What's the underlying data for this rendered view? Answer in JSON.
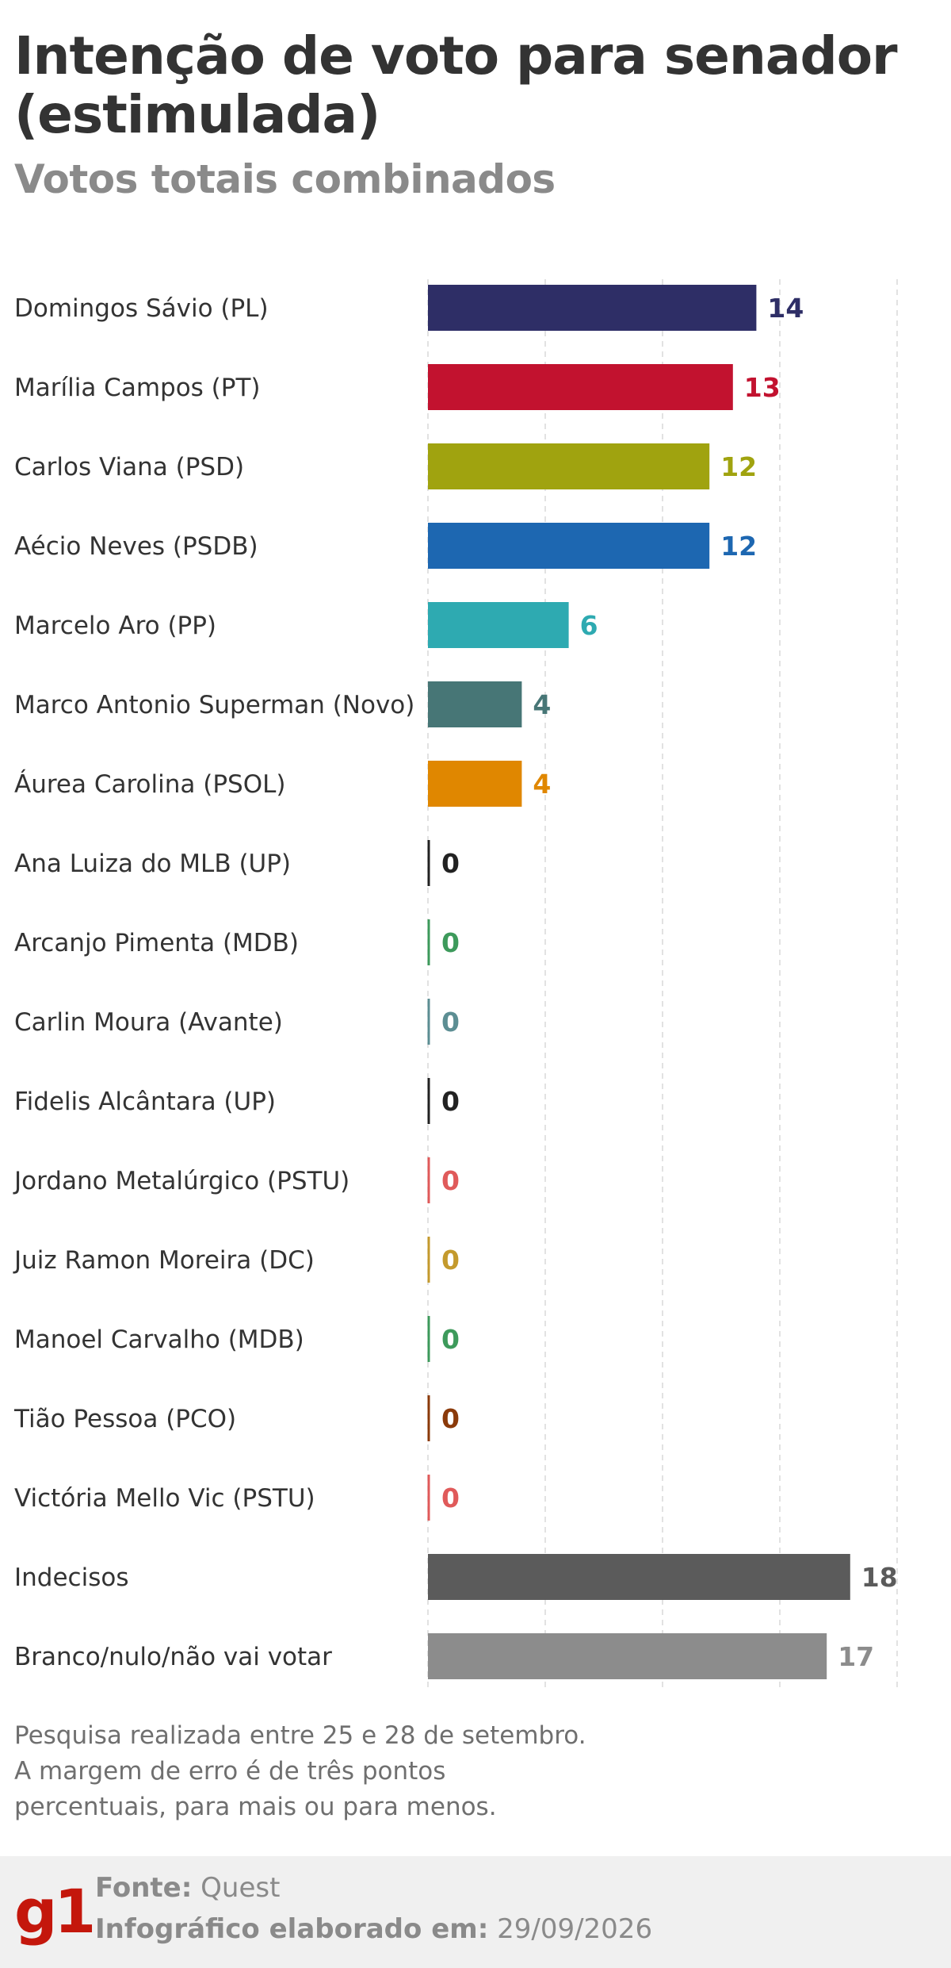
{
  "header": {
    "title": "Intenção de voto para senador (estimulada)",
    "subtitle": "Votos totais combinados"
  },
  "chart_data": {
    "type": "bar",
    "orientation": "horizontal",
    "xlim": [
      0,
      20
    ],
    "gridlines": [
      0,
      5,
      10,
      15,
      20
    ],
    "grid": true,
    "categories": [
      "Domingos Sávio (PL)",
      "Marília Campos (PT)",
      "Carlos Viana (PSD)",
      "Aécio Neves (PSDB)",
      "Marcelo Aro (PP)",
      "Marco Antonio Superman (Novo)",
      "Áurea Carolina (PSOL)",
      "Ana Luiza do MLB (UP)",
      "Arcanjo Pimenta (MDB)",
      "Carlin Moura (Avante)",
      "Fidelis Alcântara (UP)",
      "Jordano Metalúrgico (PSTU)",
      "Juiz Ramon Moreira (DC)",
      "Manoel Carvalho (MDB)",
      "Tião Pessoa (PCO)",
      "Victória Mello Vic (PSTU)",
      "Indecisos",
      "Branco/nulo/não vai votar"
    ],
    "values": [
      14,
      13,
      12,
      12,
      6,
      4,
      4,
      0,
      0,
      0,
      0,
      0,
      0,
      0,
      0,
      0,
      18,
      17
    ],
    "value_labels": [
      "14",
      "13",
      "12",
      "12",
      "6",
      "4",
      "4",
      "0",
      "0",
      "0",
      "0",
      "0",
      "0",
      "0",
      "0",
      "0",
      "18",
      "17"
    ],
    "colors": [
      "#2e2e66",
      "#c2122f",
      "#a0a30f",
      "#1d67b1",
      "#2eaab1",
      "#477676",
      "#e08700",
      "#222222",
      "#3d9a5b",
      "#5c8e93",
      "#222222",
      "#e05a5a",
      "#c49a2d",
      "#3d9a5b",
      "#8b3a0a",
      "#e05a5a",
      "#5b5b5b",
      "#8c8c8c"
    ]
  },
  "note": {
    "lines": [
      "Pesquisa realizada entre 25 e 28 de setembro.",
      "A margem de erro é de três pontos",
      "percentuais, para mais ou para menos."
    ]
  },
  "footer": {
    "logo": "g1",
    "source_key": "Fonte:",
    "source_value": "Quest",
    "date_key": "Infográfico elaborado em:",
    "date_value": "29/09/2026"
  }
}
